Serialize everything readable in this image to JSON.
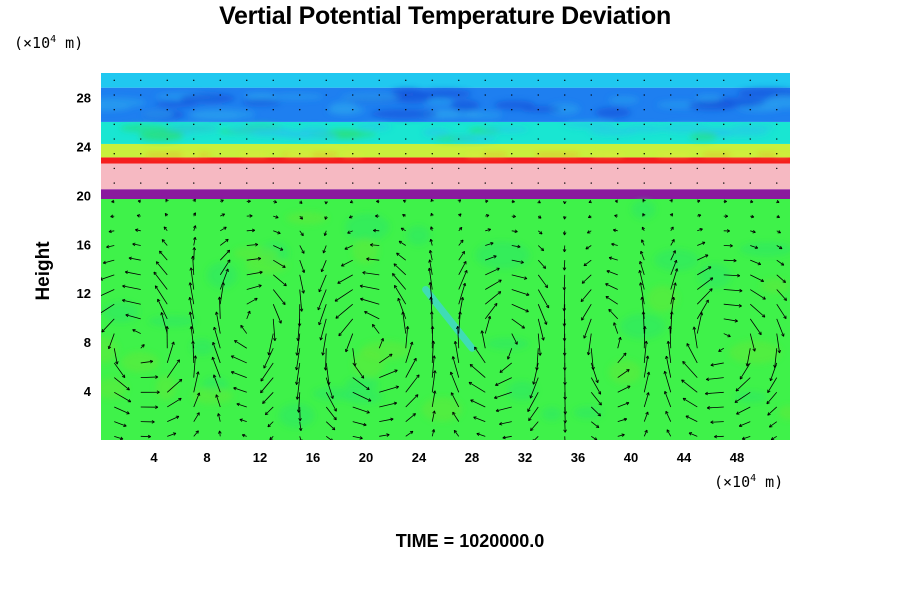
{
  "chart_data": {
    "type": "heatmap",
    "title": "Vertial Potential Temperature Deviation",
    "ylabel": "Height",
    "xlabel": "",
    "y_unit": "(×10",
    "y_unit_exp": "4",
    "y_unit_tail": " m)",
    "x_unit": "(×10",
    "x_unit_exp": "4",
    "x_unit_tail": " m)",
    "xlim": [
      0,
      52
    ],
    "ylim": [
      0,
      30
    ],
    "x_ticks": [
      4,
      8,
      12,
      16,
      20,
      24,
      28,
      32,
      36,
      40,
      44,
      48
    ],
    "y_ticks": [
      4,
      8,
      12,
      16,
      20,
      24,
      28
    ],
    "grid": false,
    "layers": [
      {
        "name": "lower",
        "from": 0,
        "to": 19.7,
        "color": "#3ff24a"
      },
      {
        "name": "purple band",
        "from": 19.7,
        "to": 20.5,
        "color": "#8a1a9e"
      },
      {
        "name": "pink band",
        "from": 20.5,
        "to": 22.6,
        "color": "#f6b9c2"
      },
      {
        "name": "red line",
        "from": 22.6,
        "to": 23.1,
        "color": "#f51e1e"
      },
      {
        "name": "yellow/green transition",
        "from": 23.1,
        "to": 24.2,
        "color": "#c8f03c"
      },
      {
        "name": "cyan",
        "from": 24.2,
        "to": 26.0,
        "color": "#19e6d2"
      },
      {
        "name": "blue",
        "from": 26.0,
        "to": 28.8,
        "color": "#1e7ff0"
      },
      {
        "name": "top cyan",
        "from": 28.8,
        "to": 30,
        "color": "#20c8f0"
      }
    ],
    "vortices": [
      {
        "x": 4,
        "y": 8,
        "dir": 1
      },
      {
        "x": 11,
        "y": 9,
        "dir": -1
      },
      {
        "x": 20,
        "y": 8,
        "dir": 1
      },
      {
        "x": 31,
        "y": 8,
        "dir": -1
      },
      {
        "x": 38.5,
        "y": 8,
        "dir": 1
      },
      {
        "x": 45.5,
        "y": 8,
        "dir": -1
      }
    ],
    "time_label": "TIME = 1020000.0"
  }
}
